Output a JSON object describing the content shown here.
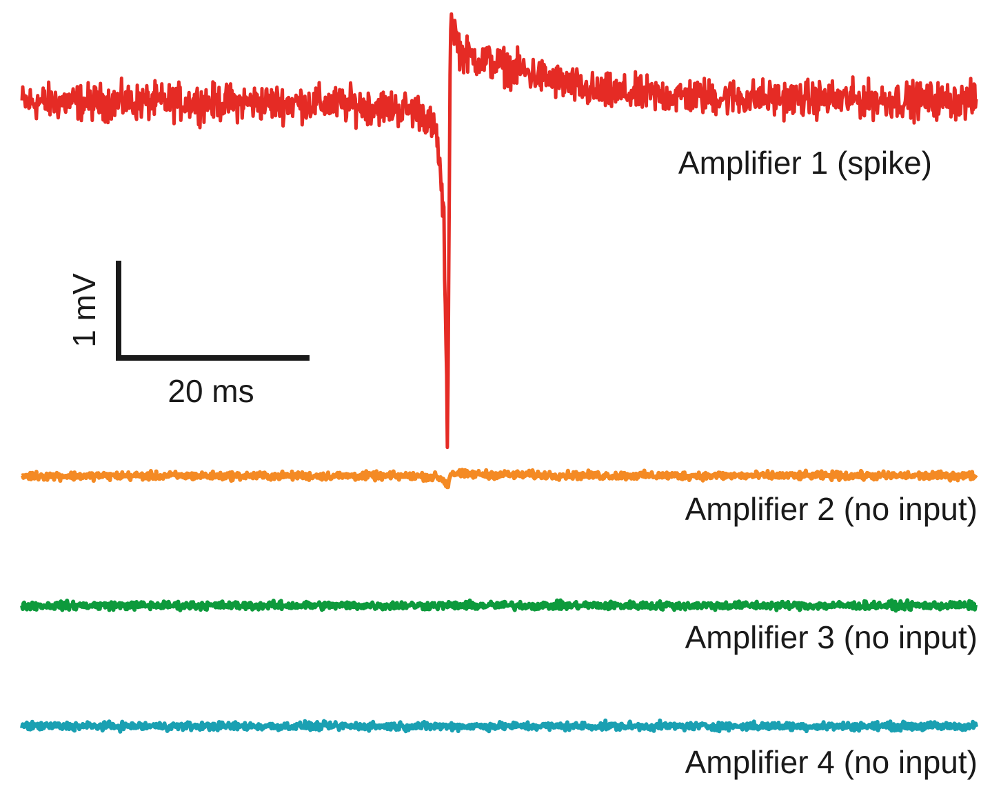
{
  "chart_data": {
    "type": "line",
    "title": "",
    "xlabel": "",
    "ylabel": "",
    "grid": false,
    "legend": "none",
    "x_unit": "ms",
    "y_unit": "mV",
    "x_range_ms": [
      0,
      100
    ],
    "scale_bar": {
      "time_label": "20 ms",
      "time_value": 20,
      "voltage_label": "1 mV",
      "voltage_value": 1
    },
    "series": [
      {
        "name": "Amplifier 1 (spike)",
        "color": "#e52b25",
        "baseline_mv": 0,
        "noise_pp_mv": 0.55,
        "events": [
          {
            "t_ms": 42.0,
            "v_mv": -0.1
          },
          {
            "t_ms": 43.5,
            "v_mv": -0.35
          },
          {
            "t_ms": 44.2,
            "v_mv": -1.2
          },
          {
            "t_ms": 44.6,
            "v_mv": -3.55
          },
          {
            "t_ms": 44.9,
            "v_mv": 0.9
          },
          {
            "t_ms": 46.0,
            "v_mv": 0.5
          },
          {
            "t_ms": 60.0,
            "v_mv": 0.1
          }
        ]
      },
      {
        "name": "Amplifier 2 (no input)",
        "color": "#f48a24",
        "baseline_mv": 0,
        "noise_pp_mv": 0.12
      },
      {
        "name": "Amplifier 3 (no input)",
        "color": "#0d9a3c",
        "baseline_mv": 0,
        "noise_pp_mv": 0.12
      },
      {
        "name": "Amplifier 4 (no input)",
        "color": "#1aa0b2",
        "baseline_mv": 0,
        "noise_pp_mv": 0.12
      }
    ]
  }
}
